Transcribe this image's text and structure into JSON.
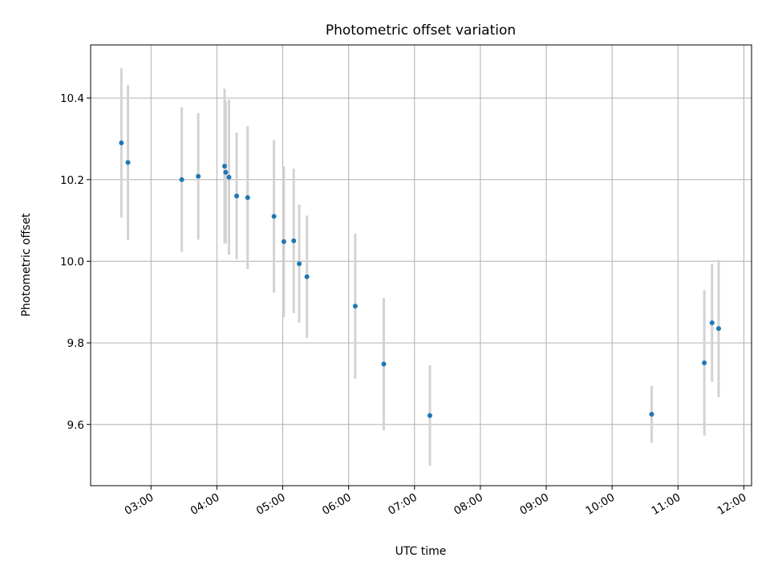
{
  "chart_data": {
    "type": "scatter",
    "title": "Photometric offset variation",
    "xlabel": "UTC time",
    "ylabel": "Photometric offset",
    "grid": true,
    "xlim": [
      "02:05",
      "12:07"
    ],
    "ylim": [
      9.45,
      10.53
    ],
    "x_ticks": [
      "03:00",
      "04:00",
      "05:00",
      "06:00",
      "07:00",
      "08:00",
      "09:00",
      "10:00",
      "11:00",
      "12:00"
    ],
    "y_ticks": [
      "9.6",
      "9.8",
      "10.0",
      "10.2",
      "10.4"
    ],
    "marker_color": "#1f77b4",
    "errorbar_color": "#d3d3d3",
    "points": [
      {
        "x": "02:33",
        "y": 10.29,
        "err": 0.183
      },
      {
        "x": "02:39",
        "y": 10.242,
        "err": 0.19
      },
      {
        "x": "03:28",
        "y": 10.2,
        "err": 0.177
      },
      {
        "x": "03:43",
        "y": 10.208,
        "err": 0.155
      },
      {
        "x": "04:07",
        "y": 10.233,
        "err": 0.19
      },
      {
        "x": "04:08",
        "y": 10.218,
        "err": 0.175
      },
      {
        "x": "04:11",
        "y": 10.206,
        "err": 0.19
      },
      {
        "x": "04:18",
        "y": 10.16,
        "err": 0.155
      },
      {
        "x": "04:28",
        "y": 10.156,
        "err": 0.175
      },
      {
        "x": "04:52",
        "y": 10.11,
        "err": 0.187
      },
      {
        "x": "05:01",
        "y": 10.048,
        "err": 0.185
      },
      {
        "x": "05:10",
        "y": 10.05,
        "err": 0.177
      },
      {
        "x": "05:15",
        "y": 9.994,
        "err": 0.145
      },
      {
        "x": "05:22",
        "y": 9.962,
        "err": 0.15
      },
      {
        "x": "06:06",
        "y": 9.89,
        "err": 0.178
      },
      {
        "x": "06:32",
        "y": 9.748,
        "err": 0.162
      },
      {
        "x": "07:14",
        "y": 9.622,
        "err": 0.123
      },
      {
        "x": "10:36",
        "y": 9.625,
        "err": 0.07
      },
      {
        "x": "11:24",
        "y": 9.751,
        "err": 0.178
      },
      {
        "x": "11:31",
        "y": 9.849,
        "err": 0.145
      },
      {
        "x": "11:37",
        "y": 9.835,
        "err": 0.168
      }
    ]
  }
}
